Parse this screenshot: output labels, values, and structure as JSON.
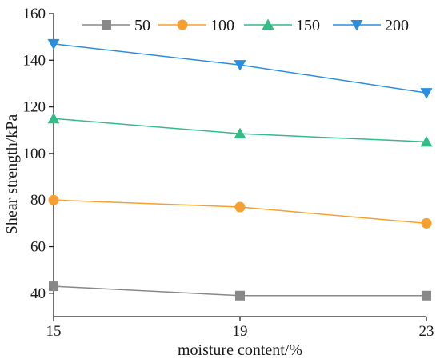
{
  "chart_data": {
    "type": "line",
    "title": "",
    "xlabel": "moisture content/%",
    "ylabel": "Shear strength/kPa",
    "x": [
      15,
      19,
      23
    ],
    "xlim": [
      15,
      23
    ],
    "ylim": [
      30,
      160
    ],
    "xticks": [
      15,
      19,
      23
    ],
    "yticks": [
      40,
      60,
      80,
      100,
      120,
      140,
      160
    ],
    "grid": false,
    "legend_position": "top",
    "series": [
      {
        "name": "50",
        "values": [
          43,
          39,
          39
        ],
        "color": "#888888",
        "marker": "square"
      },
      {
        "name": "100",
        "values": [
          80,
          77,
          70
        ],
        "color": "#f5a030",
        "marker": "circle"
      },
      {
        "name": "150",
        "values": [
          115,
          108.5,
          105
        ],
        "color": "#33bb88",
        "marker": "triangle-up"
      },
      {
        "name": "200",
        "values": [
          147,
          138,
          126
        ],
        "color": "#2a8ee0",
        "marker": "triangle-down"
      }
    ]
  }
}
